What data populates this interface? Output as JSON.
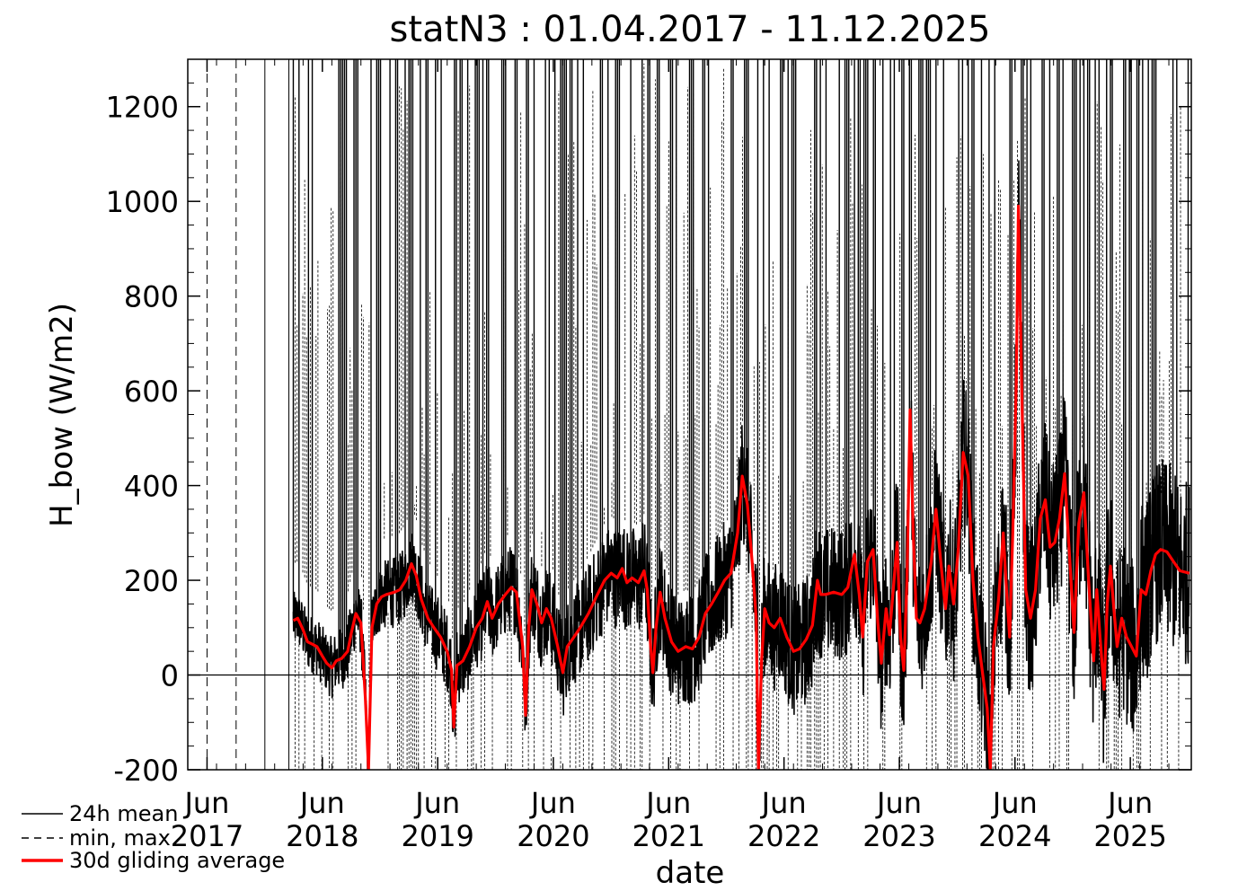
{
  "chart_data": {
    "type": "line",
    "title": "statN3 : 01.04.2017 - 11.12.2025",
    "xlabel": "date",
    "ylabel": "H_bow (W/m2)",
    "ylim": [
      -200,
      1300
    ],
    "xlim": [
      "2017-04-01",
      "2025-12-11"
    ],
    "y_ticks": [
      -200,
      0,
      200,
      400,
      600,
      800,
      1000,
      1200
    ],
    "x_ticks": [
      {
        "date": "2017-06-01",
        "month": "Jun",
        "year": "2017"
      },
      {
        "date": "2018-06-01",
        "month": "Jun",
        "year": "2018"
      },
      {
        "date": "2019-06-01",
        "month": "Jun",
        "year": "2019"
      },
      {
        "date": "2020-06-01",
        "month": "Jun",
        "year": "2020"
      },
      {
        "date": "2021-06-01",
        "month": "Jun",
        "year": "2021"
      },
      {
        "date": "2022-06-01",
        "month": "Jun",
        "year": "2022"
      },
      {
        "date": "2023-06-01",
        "month": "Jun",
        "year": "2023"
      },
      {
        "date": "2024-06-01",
        "month": "Jun",
        "year": "2024"
      },
      {
        "date": "2025-06-01",
        "month": "Jun",
        "year": "2025"
      }
    ],
    "zero_line": 0,
    "grid": false,
    "legend_position": "bottom-left",
    "legend": [
      {
        "label": "24h mean",
        "style": "solid",
        "color": "#000000"
      },
      {
        "label": "min, max",
        "style": "dashed",
        "color": "#000000"
      },
      {
        "label": "30d gliding average",
        "style": "solid-thick",
        "color": "#ff0000"
      }
    ],
    "series": [
      {
        "name": "30d gliding average",
        "color": "#ff0000",
        "points": [
          [
            "2018-03-01",
            115
          ],
          [
            "2018-03-15",
            120
          ],
          [
            "2018-04-01",
            95
          ],
          [
            "2018-04-15",
            70
          ],
          [
            "2018-05-01",
            65
          ],
          [
            "2018-05-15",
            60
          ],
          [
            "2018-06-01",
            40
          ],
          [
            "2018-06-15",
            25
          ],
          [
            "2018-07-01",
            15
          ],
          [
            "2018-07-15",
            30
          ],
          [
            "2018-08-01",
            35
          ],
          [
            "2018-08-20",
            50
          ],
          [
            "2018-09-01",
            90
          ],
          [
            "2018-09-15",
            130
          ],
          [
            "2018-10-01",
            110
          ],
          [
            "2018-10-15",
            -50
          ],
          [
            "2018-10-25",
            -200
          ],
          [
            "2018-11-05",
            100
          ],
          [
            "2018-11-20",
            150
          ],
          [
            "2018-12-05",
            165
          ],
          [
            "2018-12-20",
            170
          ],
          [
            "2019-01-15",
            175
          ],
          [
            "2019-02-01",
            180
          ],
          [
            "2019-02-20",
            200
          ],
          [
            "2019-03-10",
            235
          ],
          [
            "2019-03-25",
            210
          ],
          [
            "2019-04-10",
            160
          ],
          [
            "2019-05-01",
            120
          ],
          [
            "2019-05-20",
            100
          ],
          [
            "2019-06-10",
            80
          ],
          [
            "2019-07-01",
            50
          ],
          [
            "2019-07-15",
            10
          ],
          [
            "2019-07-22",
            -110
          ],
          [
            "2019-08-01",
            20
          ],
          [
            "2019-08-20",
            30
          ],
          [
            "2019-09-10",
            60
          ],
          [
            "2019-10-01",
            100
          ],
          [
            "2019-10-20",
            120
          ],
          [
            "2019-11-05",
            155
          ],
          [
            "2019-11-20",
            120
          ],
          [
            "2019-12-10",
            150
          ],
          [
            "2020-01-01",
            170
          ],
          [
            "2020-01-20",
            185
          ],
          [
            "2020-02-05",
            175
          ],
          [
            "2020-02-25",
            60
          ],
          [
            "2020-03-05",
            -85
          ],
          [
            "2020-03-15",
            100
          ],
          [
            "2020-03-25",
            180
          ],
          [
            "2020-04-10",
            150
          ],
          [
            "2020-04-25",
            110
          ],
          [
            "2020-05-10",
            140
          ],
          [
            "2020-05-25",
            120
          ],
          [
            "2020-06-15",
            60
          ],
          [
            "2020-07-01",
            5
          ],
          [
            "2020-07-15",
            60
          ],
          [
            "2020-08-05",
            80
          ],
          [
            "2020-08-25",
            100
          ],
          [
            "2020-09-20",
            130
          ],
          [
            "2020-10-15",
            165
          ],
          [
            "2020-11-10",
            200
          ],
          [
            "2020-12-01",
            215
          ],
          [
            "2020-12-20",
            205
          ],
          [
            "2021-01-05",
            225
          ],
          [
            "2021-01-20",
            195
          ],
          [
            "2021-02-05",
            205
          ],
          [
            "2021-02-25",
            195
          ],
          [
            "2021-03-15",
            220
          ],
          [
            "2021-03-25",
            180
          ],
          [
            "2021-04-05",
            60
          ],
          [
            "2021-04-12",
            5
          ],
          [
            "2021-04-22",
            100
          ],
          [
            "2021-05-05",
            175
          ],
          [
            "2021-05-20",
            120
          ],
          [
            "2021-06-10",
            70
          ],
          [
            "2021-07-01",
            50
          ],
          [
            "2021-07-25",
            60
          ],
          [
            "2021-08-15",
            55
          ],
          [
            "2021-09-05",
            80
          ],
          [
            "2021-09-25",
            130
          ],
          [
            "2021-10-15",
            150
          ],
          [
            "2021-11-05",
            175
          ],
          [
            "2021-11-25",
            200
          ],
          [
            "2021-12-15",
            215
          ],
          [
            "2022-01-05",
            300
          ],
          [
            "2022-01-20",
            420
          ],
          [
            "2022-02-05",
            360
          ],
          [
            "2022-02-20",
            240
          ],
          [
            "2022-03-05",
            120
          ],
          [
            "2022-03-12",
            -200
          ],
          [
            "2022-03-22",
            30
          ],
          [
            "2022-04-01",
            140
          ],
          [
            "2022-04-15",
            110
          ],
          [
            "2022-05-01",
            100
          ],
          [
            "2022-05-20",
            120
          ],
          [
            "2022-06-10",
            80
          ],
          [
            "2022-07-01",
            50
          ],
          [
            "2022-07-20",
            55
          ],
          [
            "2022-08-10",
            75
          ],
          [
            "2022-08-30",
            105
          ],
          [
            "2022-09-15",
            200
          ],
          [
            "2022-09-25",
            170
          ],
          [
            "2022-10-10",
            170
          ],
          [
            "2022-11-05",
            175
          ],
          [
            "2022-12-01",
            170
          ],
          [
            "2022-12-20",
            185
          ],
          [
            "2023-01-10",
            255
          ],
          [
            "2023-01-25",
            170
          ],
          [
            "2023-02-05",
            80
          ],
          [
            "2023-02-20",
            240
          ],
          [
            "2023-03-10",
            265
          ],
          [
            "2023-03-25",
            110
          ],
          [
            "2023-04-05",
            25
          ],
          [
            "2023-04-20",
            140
          ],
          [
            "2023-05-01",
            85
          ],
          [
            "2023-05-15",
            200
          ],
          [
            "2023-05-25",
            280
          ],
          [
            "2023-06-05",
            80
          ],
          [
            "2023-06-15",
            10
          ],
          [
            "2023-06-25",
            200
          ],
          [
            "2023-07-05",
            560
          ],
          [
            "2023-07-15",
            300
          ],
          [
            "2023-07-25",
            120
          ],
          [
            "2023-08-05",
            110
          ],
          [
            "2023-08-20",
            140
          ],
          [
            "2023-09-10",
            240
          ],
          [
            "2023-09-25",
            350
          ],
          [
            "2023-10-10",
            240
          ],
          [
            "2023-10-25",
            140
          ],
          [
            "2023-11-05",
            230
          ],
          [
            "2023-11-20",
            150
          ],
          [
            "2023-12-05",
            270
          ],
          [
            "2023-12-20",
            470
          ],
          [
            "2024-01-05",
            420
          ],
          [
            "2024-01-20",
            200
          ],
          [
            "2024-02-05",
            80
          ],
          [
            "2024-02-20",
            0
          ],
          [
            "2024-03-05",
            -70
          ],
          [
            "2024-03-15",
            -200
          ],
          [
            "2024-03-25",
            60
          ],
          [
            "2024-04-10",
            160
          ],
          [
            "2024-04-25",
            300
          ],
          [
            "2024-05-05",
            180
          ],
          [
            "2024-05-15",
            80
          ],
          [
            "2024-05-25",
            300
          ],
          [
            "2024-06-05",
            620
          ],
          [
            "2024-06-12",
            990
          ],
          [
            "2024-06-22",
            620
          ],
          [
            "2024-07-05",
            180
          ],
          [
            "2024-07-20",
            120
          ],
          [
            "2024-08-05",
            180
          ],
          [
            "2024-08-20",
            330
          ],
          [
            "2024-09-05",
            370
          ],
          [
            "2024-09-20",
            270
          ],
          [
            "2024-10-05",
            280
          ],
          [
            "2024-10-20",
            330
          ],
          [
            "2024-11-05",
            425
          ],
          [
            "2024-11-20",
            260
          ],
          [
            "2024-12-05",
            90
          ],
          [
            "2024-12-20",
            320
          ],
          [
            "2025-01-05",
            385
          ],
          [
            "2025-01-20",
            200
          ],
          [
            "2025-02-05",
            30
          ],
          [
            "2025-02-15",
            180
          ],
          [
            "2025-02-25",
            80
          ],
          [
            "2025-03-10",
            -30
          ],
          [
            "2025-03-20",
            150
          ],
          [
            "2025-03-30",
            230
          ],
          [
            "2025-04-10",
            140
          ],
          [
            "2025-04-20",
            60
          ],
          [
            "2025-05-05",
            120
          ],
          [
            "2025-05-20",
            80
          ],
          [
            "2025-06-05",
            60
          ],
          [
            "2025-06-20",
            40
          ],
          [
            "2025-07-05",
            180
          ],
          [
            "2025-07-20",
            170
          ],
          [
            "2025-08-05",
            220
          ],
          [
            "2025-08-20",
            255
          ],
          [
            "2025-09-05",
            265
          ],
          [
            "2025-09-25",
            260
          ],
          [
            "2025-10-15",
            240
          ],
          [
            "2025-11-05",
            220
          ],
          [
            "2025-12-05",
            215
          ]
        ]
      }
    ]
  }
}
